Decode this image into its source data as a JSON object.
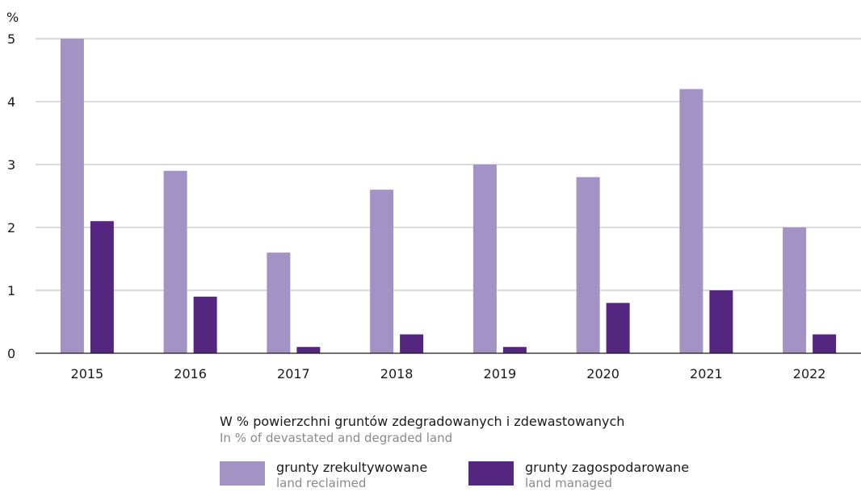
{
  "chart_data": {
    "type": "bar",
    "ylabel": "%",
    "ylim": [
      0,
      5
    ],
    "yticks": [
      "0",
      "1",
      "2",
      "3",
      "4",
      "5"
    ],
    "grid": true,
    "categories": [
      "2015",
      "2016",
      "2017",
      "2018",
      "2019",
      "2020",
      "2021",
      "2022"
    ],
    "series": [
      {
        "name": "grunty zrekultywowane",
        "name_en": "land reclaimed",
        "color": "#a393c4",
        "values": [
          5.0,
          2.9,
          1.6,
          2.6,
          3.0,
          2.8,
          4.2,
          2.0
        ]
      },
      {
        "name": "grunty zagospodarowane",
        "name_en": "land managed",
        "color": "#552680",
        "values": [
          2.1,
          0.9,
          0.1,
          0.3,
          0.1,
          0.8,
          1.0,
          0.3
        ]
      }
    ]
  },
  "note": {
    "pl": "W % powierzchni gruntów zdegradowanych i zdewastowanych",
    "en": "In % of devastated and degraded land"
  },
  "legend": [
    {
      "pl": "grunty zrekultywowane",
      "en": "land reclaimed",
      "color": "#a393c4"
    },
    {
      "pl": "grunty zagospodarowane",
      "en": "land managed",
      "color": "#552680"
    }
  ]
}
